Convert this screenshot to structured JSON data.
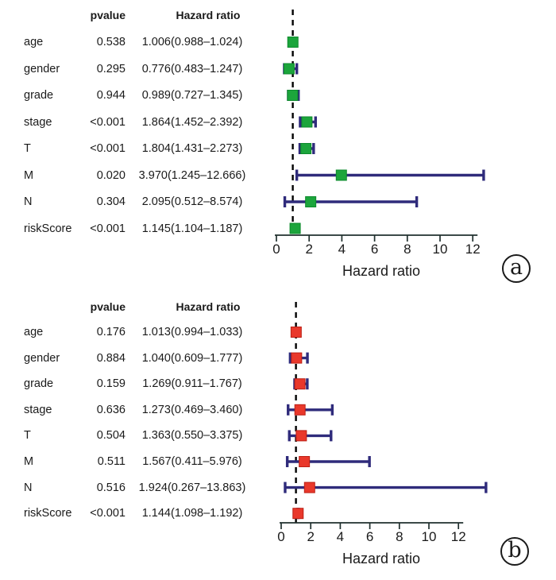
{
  "chart_data": [
    {
      "type": "forest",
      "panel_label": "a",
      "columns": {
        "pvalue": "pvalue",
        "hazard_ratio": "Hazard ratio"
      },
      "axis": {
        "title": "Hazard ratio",
        "ticks": [
          0,
          2,
          4,
          6,
          8,
          10,
          12
        ],
        "range": [
          0,
          12
        ],
        "reference_line": 1
      },
      "marker_color": "#1ca53c",
      "marker_edge_color": "#0d8a2c",
      "rows": [
        {
          "name": "age",
          "pvalue": "0.538",
          "hr_text": "1.006(0.988–1.024)",
          "hr": 1.006,
          "ci_low": 0.988,
          "ci_high": 1.024
        },
        {
          "name": "gender",
          "pvalue": "0.295",
          "hr_text": "0.776(0.483–1.247)",
          "hr": 0.776,
          "ci_low": 0.483,
          "ci_high": 1.247
        },
        {
          "name": "grade",
          "pvalue": "0.944",
          "hr_text": "0.989(0.727–1.345)",
          "hr": 0.989,
          "ci_low": 0.727,
          "ci_high": 1.345
        },
        {
          "name": "stage",
          "pvalue": "<0.001",
          "hr_text": "1.864(1.452–2.392)",
          "hr": 1.864,
          "ci_low": 1.452,
          "ci_high": 2.392
        },
        {
          "name": "T",
          "pvalue": "<0.001",
          "hr_text": "1.804(1.431–2.273)",
          "hr": 1.804,
          "ci_low": 1.431,
          "ci_high": 2.273
        },
        {
          "name": "M",
          "pvalue": "0.020",
          "hr_text": "3.970(1.245–12.666)",
          "hr": 3.97,
          "ci_low": 1.245,
          "ci_high": 12.666
        },
        {
          "name": "N",
          "pvalue": "0.304",
          "hr_text": "2.095(0.512–8.574)",
          "hr": 2.095,
          "ci_low": 0.512,
          "ci_high": 8.574
        },
        {
          "name": "riskScore",
          "pvalue": "<0.001",
          "hr_text": "1.145(1.104–1.187)",
          "hr": 1.145,
          "ci_low": 1.104,
          "ci_high": 1.187
        }
      ]
    },
    {
      "type": "forest",
      "panel_label": "b",
      "columns": {
        "pvalue": "pvalue",
        "hazard_ratio": "Hazard ratio"
      },
      "axis": {
        "title": "Hazard ratio",
        "ticks": [
          0,
          2,
          4,
          6,
          8,
          10,
          12
        ],
        "range": [
          0,
          12
        ],
        "reference_line": 1
      },
      "marker_color": "#e9382b",
      "marker_edge_color": "#bc2015",
      "rows": [
        {
          "name": "age",
          "pvalue": "0.176",
          "hr_text": "1.013(0.994–1.033)",
          "hr": 1.013,
          "ci_low": 0.994,
          "ci_high": 1.033
        },
        {
          "name": "gender",
          "pvalue": "0.884",
          "hr_text": "1.040(0.609–1.777)",
          "hr": 1.04,
          "ci_low": 0.609,
          "ci_high": 1.777
        },
        {
          "name": "grade",
          "pvalue": "0.159",
          "hr_text": "1.269(0.911–1.767)",
          "hr": 1.269,
          "ci_low": 0.911,
          "ci_high": 1.767
        },
        {
          "name": "stage",
          "pvalue": "0.636",
          "hr_text": "1.273(0.469–3.460)",
          "hr": 1.273,
          "ci_low": 0.469,
          "ci_high": 3.46
        },
        {
          "name": "T",
          "pvalue": "0.504",
          "hr_text": "1.363(0.550–3.375)",
          "hr": 1.363,
          "ci_low": 0.55,
          "ci_high": 3.375
        },
        {
          "name": "M",
          "pvalue": "0.511",
          "hr_text": "1.567(0.411–5.976)",
          "hr": 1.567,
          "ci_low": 0.411,
          "ci_high": 5.976
        },
        {
          "name": "N",
          "pvalue": "0.516",
          "hr_text": "1.924(0.267–13.863)",
          "hr": 1.924,
          "ci_low": 0.267,
          "ci_high": 13.863
        },
        {
          "name": "riskScore",
          "pvalue": "<0.001",
          "hr_text": "1.144(1.098–1.192)",
          "hr": 1.144,
          "ci_low": 1.098,
          "ci_high": 1.192
        }
      ]
    }
  ],
  "colors": {
    "error_bar": "#2f2b7b",
    "reference_line": "#000000",
    "axis_line": "#20302e",
    "text": "#1a1a1a",
    "background": "#ffffff"
  }
}
